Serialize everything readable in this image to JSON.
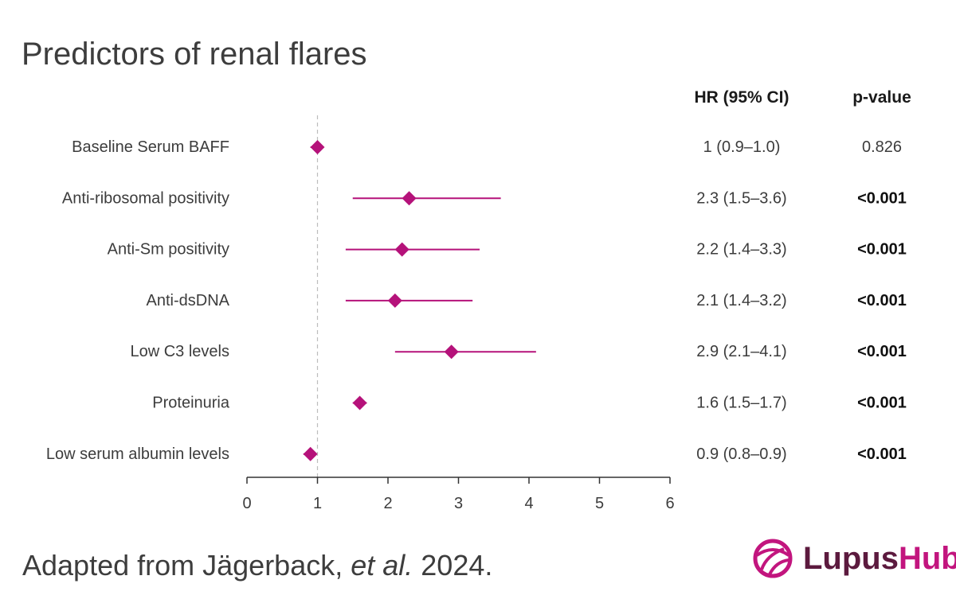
{
  "title": "Predictors of renal flares",
  "source": {
    "prefix": "Adapted from Jägerback, ",
    "italic": "et al.",
    "suffix": " 2024."
  },
  "logo": {
    "word_part1": "Lupus",
    "word_part2": "Hub",
    "primary_color": "#c2157e",
    "secondary_color": "#5c1a3e"
  },
  "colors": {
    "marker": "#b5127a",
    "axis": "#333333",
    "reference_line": "#bdbdbd"
  },
  "chart_data": {
    "type": "forest",
    "column_headers": {
      "hr": "HR (95% CI)",
      "p": "p-value"
    },
    "reference_value": 1,
    "xlim": [
      0,
      6
    ],
    "x_ticks": [
      0,
      1,
      2,
      3,
      4,
      5,
      6
    ],
    "rows": [
      {
        "label": "Baseline Serum BAFF",
        "hr": 1.0,
        "lower": 0.9,
        "upper": 1.0,
        "hr_text": "1 (0.9–1.0)",
        "p_text": "0.826",
        "p_bold": false
      },
      {
        "label": "Anti-ribosomal positivity",
        "hr": 2.3,
        "lower": 1.5,
        "upper": 3.6,
        "hr_text": "2.3 (1.5–3.6)",
        "p_text": "<0.001",
        "p_bold": true
      },
      {
        "label": "Anti-Sm positivity",
        "hr": 2.2,
        "lower": 1.4,
        "upper": 3.3,
        "hr_text": "2.2 (1.4–3.3)",
        "p_text": "<0.001",
        "p_bold": true
      },
      {
        "label": "Anti-dsDNA",
        "hr": 2.1,
        "lower": 1.4,
        "upper": 3.2,
        "hr_text": "2.1 (1.4–3.2)",
        "p_text": "<0.001",
        "p_bold": true
      },
      {
        "label": "Low C3 levels",
        "hr": 2.9,
        "lower": 2.1,
        "upper": 4.1,
        "hr_text": "2.9 (2.1–4.1)",
        "p_text": "<0.001",
        "p_bold": true
      },
      {
        "label": "Proteinuria",
        "hr": 1.6,
        "lower": 1.5,
        "upper": 1.7,
        "hr_text": "1.6 (1.5–1.7)",
        "p_text": "<0.001",
        "p_bold": true
      },
      {
        "label": "Low serum albumin levels",
        "hr": 0.9,
        "lower": 0.8,
        "upper": 0.9,
        "hr_text": "0.9 (0.8–0.9)",
        "p_text": "<0.001",
        "p_bold": true
      }
    ]
  }
}
